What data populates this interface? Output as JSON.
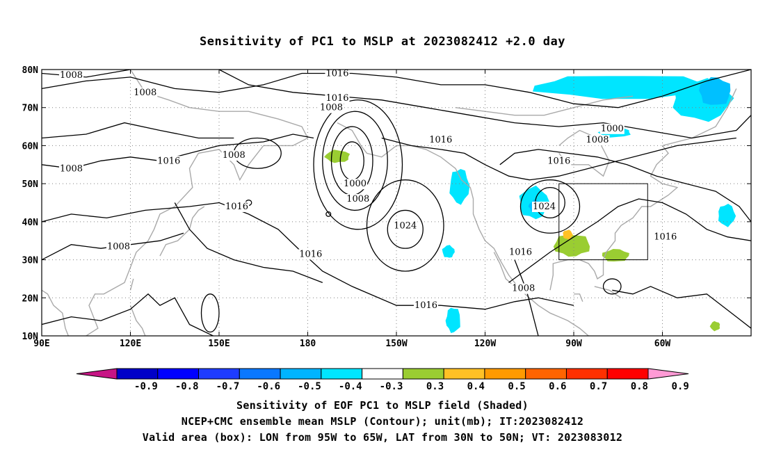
{
  "title": "Sensitivity of PC1 to MSLP at 2023082412 +2.0 day",
  "map": {
    "lat_labels": [
      "80N",
      "70N",
      "60N",
      "50N",
      "40N",
      "30N",
      "20N",
      "10N"
    ],
    "lon_labels": [
      "90E",
      "120E",
      "150E",
      "180",
      "150W",
      "120W",
      "90W",
      "60W"
    ],
    "contour_labels": [
      {
        "text": "1008",
        "lon": 100,
        "lat": 78.5
      },
      {
        "text": "1008",
        "lon": 125,
        "lat": 74
      },
      {
        "text": "1016",
        "lon": 190,
        "lat": 79
      },
      {
        "text": "1016",
        "lon": 190,
        "lat": 72.5
      },
      {
        "text": "1008",
        "lon": 188,
        "lat": 70
      },
      {
        "text": "1016",
        "lon": 225,
        "lat": 61.5
      },
      {
        "text": "1008",
        "lon": 100,
        "lat": 54
      },
      {
        "text": "1016",
        "lon": 133,
        "lat": 56
      },
      {
        "text": "1008",
        "lon": 155,
        "lat": 57.5
      },
      {
        "text": "1016",
        "lon": 156,
        "lat": 44
      },
      {
        "text": "1000",
        "lon": 196,
        "lat": 50
      },
      {
        "text": "1008",
        "lon": 197,
        "lat": 46
      },
      {
        "text": "1024",
        "lon": 213,
        "lat": 39
      },
      {
        "text": "1016",
        "lon": 181,
        "lat": 31.5
      },
      {
        "text": "1008",
        "lon": 116,
        "lat": 33.5
      },
      {
        "text": "1016",
        "lon": 220,
        "lat": 18
      },
      {
        "text": "1024",
        "lon": 260,
        "lat": 44
      },
      {
        "text": "1016",
        "lon": 252,
        "lat": 32
      },
      {
        "text": "1008",
        "lon": 253,
        "lat": 22.5
      },
      {
        "text": "1000",
        "lon": 283,
        "lat": 64.5
      },
      {
        "text": "1008",
        "lon": 278,
        "lat": 61.5
      },
      {
        "text": "1016",
        "lon": 265,
        "lat": 56
      },
      {
        "text": "1016",
        "lon": 301,
        "lat": 36
      }
    ],
    "valid_box": {
      "lon_min": 265,
      "lon_max": 295,
      "lat_min": 30,
      "lat_max": 50
    },
    "shaded_regions": [
      {
        "value": -0.4,
        "color": "#00e5ff",
        "lon": [
          250,
          325
        ],
        "lat": [
          72,
          79.5
        ]
      },
      {
        "value": -0.4,
        "color": "#00e5ff",
        "lon": [
          301,
          325
        ],
        "lat": [
          66,
          79
        ]
      },
      {
        "value": -0.5,
        "color": "#00c0ff",
        "lon": [
          311,
          324
        ],
        "lat": [
          70,
          79
        ]
      },
      {
        "value": -0.4,
        "color": "#00e5ff",
        "lon": [
          277,
          290
        ],
        "lat": [
          62,
          65
        ]
      },
      {
        "value": -0.4,
        "color": "#00e5ff",
        "lon": [
          227,
          235
        ],
        "lat": [
          44,
          55
        ]
      },
      {
        "value": -0.4,
        "color": "#00e5ff",
        "lon": [
          250,
          262
        ],
        "lat": [
          40,
          50
        ]
      },
      {
        "value": -0.5,
        "color": "#00c0ff",
        "lon": [
          254,
          260
        ],
        "lat": [
          42,
          46
        ]
      },
      {
        "value": -0.4,
        "color": "#00e5ff",
        "lon": [
          226,
          232
        ],
        "lat": [
          10,
          18
        ]
      },
      {
        "value": -0.4,
        "color": "#00e5ff",
        "lon": [
          318,
          325
        ],
        "lat": [
          38,
          45
        ]
      },
      {
        "value": -0.4,
        "color": "#00e5ff",
        "lon": [
          225,
          230
        ],
        "lat": [
          30,
          34
        ]
      },
      {
        "value": 0.3,
        "color": "#9acd32",
        "lon": [
          185,
          195
        ],
        "lat": [
          55,
          59
        ]
      },
      {
        "value": 0.3,
        "color": "#9acd32",
        "lon": [
          262,
          277
        ],
        "lat": [
          30,
          37
        ]
      },
      {
        "value": 0.4,
        "color": "#ffc125",
        "lon": [
          266,
          270
        ],
        "lat": [
          35,
          38
        ]
      },
      {
        "value": 0.3,
        "color": "#9acd32",
        "lon": [
          279,
          290
        ],
        "lat": [
          29,
          33
        ]
      },
      {
        "value": 0.3,
        "color": "#9acd32",
        "lon": [
          316,
          320
        ],
        "lat": [
          11,
          14
        ]
      }
    ]
  },
  "colorbar": {
    "labels": [
      "-0.9",
      "-0.8",
      "-0.7",
      "-0.6",
      "-0.5",
      "-0.4",
      "-0.3",
      "0.3",
      "0.4",
      "0.5",
      "0.6",
      "0.7",
      "0.8",
      "0.9"
    ],
    "colors": [
      "#c71585",
      "#0000c8",
      "#0000ff",
      "#1e3cff",
      "#0a78ff",
      "#00b4ff",
      "#00e5ff",
      "#ffffff",
      "#9acd32",
      "#ffc125",
      "#ff9a00",
      "#ff6400",
      "#ff3000",
      "#ff0000",
      "#ff9ad5"
    ]
  },
  "caption": {
    "line1": "Sensitivity of EOF PC1 to MSLP field (Shaded)",
    "line2": "NCEP+CMC ensemble mean MSLP (Contour); unit(mb); IT:2023082412",
    "line3": "Valid area (box): LON from 95W to 65W, LAT from 30N to 50N; VT: 2023083012"
  }
}
